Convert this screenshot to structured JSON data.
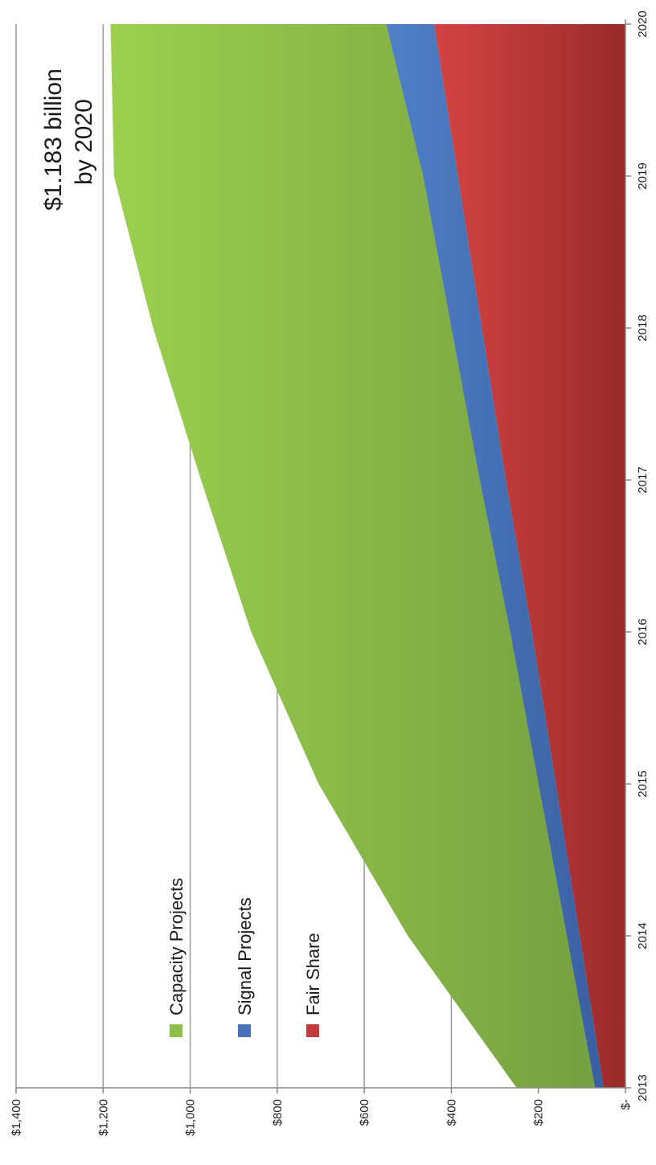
{
  "chart_data": {
    "type": "area",
    "stacked": true,
    "orientation": "rotated-90",
    "x": [
      2013,
      2014,
      2015,
      2016,
      2017,
      2018,
      2019,
      2020
    ],
    "x_tick_labels": [
      "2013",
      "2014",
      "2015",
      "2016",
      "2017",
      "2018",
      "2019",
      "2020"
    ],
    "y_tick_values": [
      0,
      200,
      400,
      600,
      800,
      1000,
      1200,
      1400
    ],
    "y_tick_labels": [
      "$-",
      "$200",
      "$400",
      "$600",
      "$800",
      "$1,000",
      "$1,200",
      "$1,400"
    ],
    "ylim": [
      0,
      1400
    ],
    "xlim": [
      2013,
      2020
    ],
    "grid": true,
    "series": [
      {
        "name": "Fair Share",
        "color": "#b83232",
        "values": [
          50,
          105,
          160,
          215,
          275,
          330,
          385,
          440
        ],
        "cumulative": [
          50,
          105,
          160,
          215,
          275,
          330,
          385,
          440
        ]
      },
      {
        "name": "Signal Projects",
        "color": "#4a72b8",
        "values": [
          20,
          30,
          40,
          50,
          60,
          70,
          80,
          110
        ],
        "cumulative": [
          70,
          135,
          200,
          265,
          335,
          400,
          465,
          550
        ]
      },
      {
        "name": "Capacity Projects",
        "color": "#8dc04a",
        "values": [
          180,
          365,
          505,
          595,
          640,
          685,
          710,
          633
        ],
        "cumulative": [
          250,
          500,
          705,
          860,
          975,
          1085,
          1175,
          1183
        ]
      }
    ],
    "legend": {
      "placement": "lower-left",
      "items": [
        "Capacity Projects",
        "Signal Projects",
        "Fair Share"
      ]
    },
    "annotation": {
      "line1": "$1.183 billion",
      "line2": "by 2020"
    }
  }
}
